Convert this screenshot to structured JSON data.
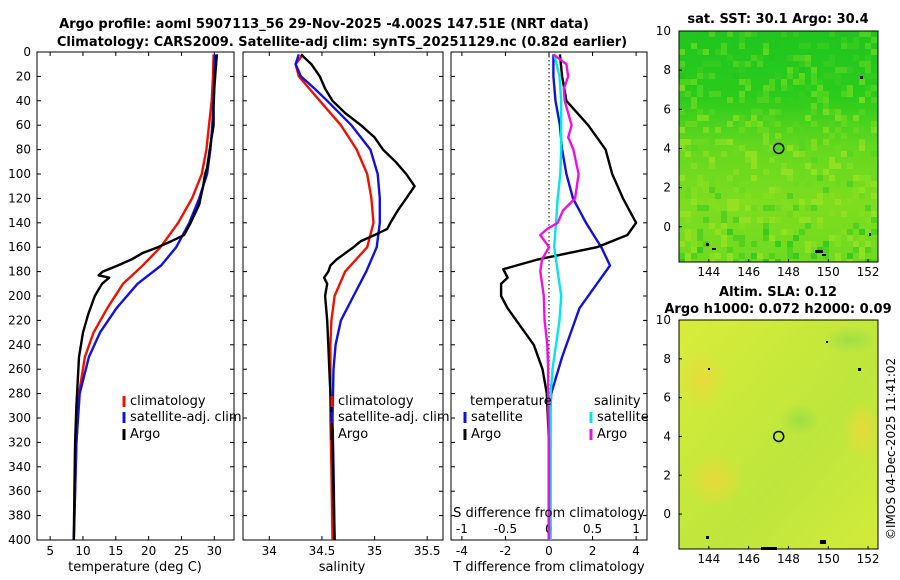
{
  "title": {
    "line1": "Argo profile: aoml 5907113_56 29-Nov-2025 -4.002S 147.51E (NRT data)",
    "line2": "Climatology: CARS2009. Satellite-adj clim: synTS_20251129.nc (0.82d earlier)"
  },
  "colors": {
    "clim": "#ee1100",
    "sat": "#1111dd",
    "argo": "#000000",
    "satS": "#00e6ee",
    "argoS": "#ee11dd"
  },
  "chart_data": [
    {
      "type": "line",
      "id": "temperature",
      "xlabel": "temperature (deg C)",
      "xlim": [
        3,
        33
      ],
      "xticks": [
        5,
        10,
        15,
        20,
        25,
        30
      ],
      "ylim": [
        400,
        0
      ],
      "yticks": [
        0,
        20,
        40,
        60,
        80,
        100,
        120,
        140,
        160,
        180,
        200,
        220,
        240,
        260,
        280,
        300,
        320,
        340,
        360,
        380,
        400
      ],
      "legend": [
        "climatology",
        "satellite-adj. clim",
        "Argo"
      ],
      "series": [
        {
          "name": "climatology",
          "color": "clim",
          "depth": [
            2,
            20,
            40,
            60,
            80,
            100,
            120,
            140,
            160,
            175,
            190,
            210,
            230,
            250,
            280,
            320,
            360,
            400
          ],
          "values": [
            29.9,
            29.8,
            29.6,
            29.2,
            28.8,
            28.1,
            26.6,
            24.5,
            21.8,
            19.1,
            16.1,
            13.7,
            11.6,
            10.3,
            9.4,
            9.0,
            8.8,
            8.6
          ]
        },
        {
          "name": "satellite-adj. clim",
          "color": "sat",
          "depth": [
            2,
            20,
            40,
            60,
            80,
            100,
            120,
            140,
            160,
            175,
            190,
            210,
            230,
            250,
            280,
            320,
            360,
            400
          ],
          "values": [
            30.1,
            30.0,
            29.9,
            29.7,
            29.4,
            28.9,
            27.7,
            26.2,
            24.2,
            21.9,
            18.3,
            15.1,
            12.6,
            10.9,
            9.5,
            9.0,
            8.8,
            8.6
          ]
        },
        {
          "name": "Argo",
          "color": "argo",
          "depth": [
            2,
            15,
            30,
            45,
            60,
            80,
            95,
            100,
            110,
            125,
            140,
            150,
            155,
            160,
            165,
            170,
            175,
            180,
            183,
            185,
            190,
            200,
            215,
            230,
            250,
            270,
            290,
            320,
            360,
            400
          ],
          "values": [
            30.4,
            30.2,
            30.0,
            29.9,
            29.9,
            29.3,
            28.9,
            28.6,
            28.3,
            27.7,
            26.4,
            25.4,
            23.5,
            21.4,
            19.0,
            17.4,
            15.3,
            13.0,
            12.4,
            14.0,
            12.9,
            11.8,
            10.8,
            10.0,
            9.4,
            9.2,
            9.0,
            8.8,
            8.7,
            8.6
          ]
        }
      ]
    },
    {
      "type": "line",
      "id": "salinity",
      "xlabel": "salinity",
      "xlim": [
        33.75,
        35.65
      ],
      "xticks": [
        34,
        34.5,
        35,
        35.5
      ],
      "ylim": [
        400,
        0
      ],
      "legend": [
        "climatology",
        "satellite-adj. clim",
        "Argo"
      ],
      "series": [
        {
          "name": "climatology",
          "color": "clim",
          "depth": [
            2,
            10,
            20,
            30,
            40,
            60,
            80,
            100,
            120,
            140,
            160,
            180,
            200,
            220,
            240,
            260,
            300,
            340,
            400
          ],
          "values": [
            34.32,
            34.25,
            34.28,
            34.38,
            34.48,
            34.68,
            34.83,
            34.93,
            34.97,
            34.99,
            34.93,
            34.72,
            34.62,
            34.59,
            34.58,
            34.58,
            34.58,
            34.59,
            34.6
          ]
        },
        {
          "name": "satellite-adj. clim",
          "color": "sat",
          "depth": [
            2,
            10,
            20,
            30,
            40,
            60,
            80,
            100,
            120,
            140,
            160,
            180,
            200,
            220,
            240,
            260,
            300,
            340,
            400
          ],
          "values": [
            34.28,
            34.25,
            34.3,
            34.43,
            34.55,
            34.78,
            34.96,
            35.03,
            35.05,
            35.05,
            35.02,
            34.92,
            34.8,
            34.68,
            34.63,
            34.61,
            34.6,
            34.61,
            34.62
          ]
        },
        {
          "name": "Argo",
          "color": "argo",
          "depth": [
            2,
            10,
            20,
            30,
            40,
            50,
            60,
            70,
            80,
            90,
            100,
            110,
            120,
            130,
            140,
            145,
            150,
            155,
            160,
            165,
            170,
            175,
            180,
            185,
            190,
            200,
            220,
            240,
            260,
            280,
            320,
            360,
            400
          ],
          "values": [
            34.3,
            34.4,
            34.48,
            34.53,
            34.6,
            34.72,
            34.87,
            35.0,
            35.08,
            35.2,
            35.3,
            35.38,
            35.3,
            35.22,
            35.15,
            35.12,
            35.0,
            34.87,
            34.8,
            34.72,
            34.64,
            34.58,
            34.56,
            34.52,
            34.55,
            34.53,
            34.55,
            34.56,
            34.57,
            34.58,
            34.6,
            34.61,
            34.62
          ]
        }
      ]
    },
    {
      "type": "line",
      "id": "difference",
      "xlabel": "T difference from climatology",
      "xlim": [
        -4.5,
        4.5
      ],
      "xticks": [
        -4,
        -2,
        0,
        2,
        4
      ],
      "top_axis_label": "S difference from climatology",
      "top_xlim": [
        -1.125,
        1.125
      ],
      "top_xticks": [
        -1,
        -0.5,
        0,
        0.5,
        1
      ],
      "legend_titles": [
        "temperature",
        "salinity"
      ],
      "legend_temperature": [
        "satellite",
        "Argo"
      ],
      "legend_salinity": [
        "satellite",
        "Argo"
      ],
      "series": [
        {
          "name": "T satellite",
          "color": "sat",
          "axis": "T",
          "depth": [
            2,
            20,
            40,
            60,
            80,
            100,
            120,
            140,
            160,
            175,
            190,
            210,
            230,
            250,
            280,
            320,
            360,
            400
          ],
          "values": [
            0.2,
            0.2,
            0.3,
            0.5,
            0.6,
            0.8,
            1.1,
            1.7,
            2.4,
            2.8,
            2.2,
            1.4,
            1.0,
            0.6,
            0.1,
            0,
            0,
            0
          ]
        },
        {
          "name": "T Argo",
          "color": "argo",
          "axis": "T",
          "depth": [
            2,
            20,
            40,
            60,
            80,
            100,
            120,
            140,
            150,
            160,
            170,
            178,
            185,
            190,
            200,
            210,
            220,
            240,
            260,
            280,
            320,
            360,
            400
          ],
          "values": [
            0.5,
            0.6,
            0.8,
            1.8,
            2.6,
            2.9,
            3.4,
            4.0,
            3.6,
            2.2,
            -0.5,
            -2.1,
            -1.9,
            -2.2,
            -2.2,
            -1.9,
            -1.5,
            -0.7,
            -0.3,
            -0.1,
            0,
            0,
            0
          ]
        },
        {
          "name": "S satellite",
          "color": "satS",
          "axis": "S",
          "depth": [
            2,
            20,
            40,
            60,
            80,
            100,
            120,
            140,
            160,
            180,
            200,
            220,
            240,
            260,
            280,
            320,
            360,
            400
          ],
          "values": [
            0.06,
            0.12,
            0.14,
            0.14,
            0.14,
            0.13,
            0.1,
            0.08,
            0.06,
            0.1,
            0.14,
            0.12,
            0.08,
            0.04,
            0.02,
            0.02,
            0.02,
            0.02
          ]
        },
        {
          "name": "S Argo",
          "color": "argoS",
          "axis": "S",
          "depth": [
            2,
            10,
            20,
            30,
            40,
            60,
            70,
            80,
            100,
            120,
            130,
            140,
            145,
            150,
            155,
            160,
            170,
            180,
            200,
            220,
            240,
            260,
            280,
            320,
            360,
            400
          ],
          "values": [
            0.05,
            0.2,
            0.22,
            0.17,
            0.18,
            0.26,
            0.22,
            0.28,
            0.34,
            0.3,
            0.16,
            0.1,
            -0.02,
            -0.1,
            -0.05,
            0.0,
            -0.08,
            -0.1,
            -0.06,
            -0.05,
            -0.02,
            -0.01,
            -0.01,
            0.0,
            0.0,
            0.0
          ]
        }
      ]
    },
    {
      "type": "heatmap",
      "id": "sst-map",
      "title": "sat. SST: 30.1 Argo: 30.4",
      "xlim": [
        142.5,
        152.5
      ],
      "ylim": [
        -1.8,
        10
      ],
      "xticks": [
        144,
        146,
        148,
        150,
        152
      ],
      "yticks": [
        0,
        2,
        4,
        6,
        8,
        10
      ],
      "marker": [
        147.51,
        4.0
      ]
    },
    {
      "type": "heatmap",
      "id": "sla-map",
      "title1": "Altim. SLA: 0.12",
      "title2": "Argo h1000: 0.072 h2000: 0.09",
      "xlim": [
        142.5,
        152.5
      ],
      "ylim": [
        -1.8,
        10
      ],
      "xticks": [
        144,
        146,
        148,
        150,
        152
      ],
      "yticks": [
        0,
        2,
        4,
        6,
        8,
        10
      ],
      "marker": [
        147.51,
        4.0
      ]
    }
  ],
  "copyright": "©IMOS 04-Dec-2025 11:41:02"
}
